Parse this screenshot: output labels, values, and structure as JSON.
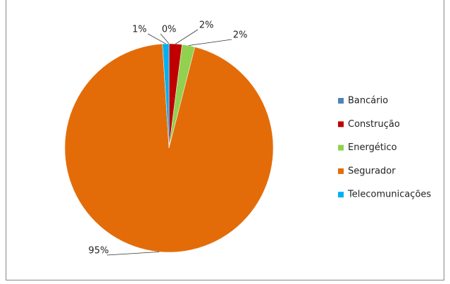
{
  "chart_data": {
    "type": "pie",
    "categories": [
      "Bancário",
      "Construção",
      "Energético",
      "Segurador",
      "Telecomunicações"
    ],
    "values": [
      0,
      2,
      2,
      95,
      1
    ],
    "value_labels": [
      "0%",
      "2%",
      "2%",
      "95%",
      "1%"
    ],
    "colors": [
      "#4f81bd",
      "#c00000",
      "#92d050",
      "#e36c09",
      "#00b0f0"
    ],
    "legend": "right"
  }
}
